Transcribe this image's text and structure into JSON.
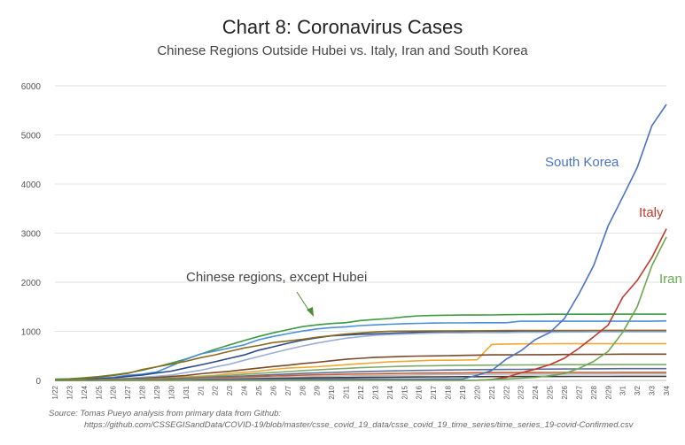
{
  "title": "Chart 8: Coronavirus Cases",
  "subtitle": "Chinese Regions Outside Hubei vs. Italy, Iran and South Korea",
  "source_line_1": "Source: Tomas Pueyo analysis from primary data from Github:",
  "source_line_2": "https://github.com/CSSEGISandData/COVID-19/blob/master/csse_covid_19_data/csse_covid_19_time_series/time_series_19-covid-Confirmed.csv",
  "annotation": "Chinese regions, except Hubei",
  "colors": {
    "south_korea": "#4a72c4",
    "italy": "#c0392b",
    "iran": "#6aa84f",
    "grid": "#e2e2e2",
    "axis_text": "#555555",
    "annotation_text": "#444444",
    "arrow": "#4f8a3a"
  },
  "chart_data": {
    "type": "line",
    "ylim": [
      0,
      6000
    ],
    "yticks": [
      0,
      1000,
      2000,
      3000,
      4000,
      5000,
      6000
    ],
    "grid": true,
    "legend": "direct labels at line ends",
    "x": [
      "1/22",
      "1/23",
      "1/24",
      "1/25",
      "1/26",
      "1/27",
      "1/28",
      "1/29",
      "1/30",
      "1/31",
      "2/1",
      "2/2",
      "2/3",
      "2/4",
      "2/5",
      "2/6",
      "2/7",
      "2/8",
      "2/9",
      "2/10",
      "2/11",
      "2/12",
      "2/13",
      "2/14",
      "2/15",
      "2/16",
      "2/17",
      "2/18",
      "2/19",
      "2/20",
      "2/21",
      "2/22",
      "2/23",
      "2/24",
      "2/25",
      "2/26",
      "2/27",
      "2/28",
      "2/29",
      "3/1",
      "3/2",
      "3/3",
      "3/4"
    ],
    "labeled_series": [
      {
        "name": "South Korea",
        "color": "#4a72c4",
        "values": [
          1,
          1,
          2,
          2,
          3,
          4,
          4,
          4,
          4,
          11,
          12,
          15,
          15,
          16,
          19,
          23,
          24,
          24,
          25,
          27,
          28,
          28,
          28,
          28,
          28,
          29,
          30,
          31,
          31,
          104,
          204,
          433,
          602,
          833,
          977,
          1261,
          1766,
          2337,
          3150,
          3736,
          4335,
          5186,
          5621
        ]
      },
      {
        "name": "Italy",
        "color": "#c0392b",
        "values": [
          0,
          0,
          0,
          0,
          0,
          0,
          0,
          0,
          0,
          2,
          2,
          2,
          2,
          2,
          2,
          2,
          3,
          3,
          3,
          3,
          3,
          3,
          3,
          3,
          3,
          3,
          3,
          3,
          3,
          3,
          20,
          62,
          155,
          229,
          322,
          453,
          655,
          888,
          1128,
          1694,
          2036,
          2502,
          3089
        ]
      },
      {
        "name": "Iran",
        "color": "#6aa84f",
        "values": [
          0,
          0,
          0,
          0,
          0,
          0,
          0,
          0,
          0,
          0,
          0,
          0,
          0,
          0,
          0,
          0,
          0,
          0,
          0,
          0,
          0,
          0,
          0,
          0,
          0,
          0,
          0,
          0,
          2,
          5,
          18,
          28,
          43,
          61,
          95,
          139,
          245,
          388,
          593,
          978,
          1501,
          2336,
          2922
        ]
      }
    ],
    "china_regions": [
      {
        "color": "#3c9a42",
        "values": [
          26,
          32,
          53,
          78,
          111,
          151,
          207,
          277,
          354,
          436,
          535,
          632,
          725,
          813,
          895,
          970,
          1034,
          1095,
          1131,
          1159,
          1177,
          1219,
          1241,
          1261,
          1294,
          1316,
          1322,
          1328,
          1331,
          1332,
          1333,
          1339,
          1342,
          1345,
          1347,
          1347,
          1347,
          1348,
          1349,
          1349,
          1350,
          1350,
          1350
        ]
      },
      {
        "color": "#4a90d9",
        "values": [
          5,
          10,
          27,
          43,
          62,
          104,
          128,
          173,
          296,
          428,
          538,
          599,
          661,
          724,
          829,
          895,
          954,
          1006,
          1048,
          1075,
          1092,
          1117,
          1131,
          1145,
          1155,
          1162,
          1167,
          1171,
          1172,
          1174,
          1174,
          1175,
          1205,
          1205,
          1205,
          1205,
          1205,
          1205,
          1205,
          1205,
          1205,
          1206,
          1213
        ]
      },
      {
        "color": "#2b4a8a",
        "values": [
          1,
          5,
          18,
          33,
          48,
          83,
          110,
          152,
          189,
          255,
          316,
          380,
          450,
          519,
          617,
          684,
          756,
          819,
          869,
          908,
          924,
          940,
          948,
          958,
          969,
          981,
          988,
          994,
          997,
          998,
          999,
          999,
          1000,
          1000,
          1000,
          1000,
          1000,
          1000,
          1001,
          1001,
          1001,
          1001,
          1001
        ]
      },
      {
        "color": "#8b6a1e",
        "values": [
          9,
          24,
          43,
          69,
          100,
          143,
          221,
          277,
          332,
          389,
          463,
          521,
          593,
          661,
          711,
          772,
          803,
          838,
          879,
          912,
          946,
          968,
          988,
          1001,
          1004,
          1006,
          1007,
          1008,
          1010,
          1011,
          1013,
          1016,
          1016,
          1016,
          1016,
          1017,
          1017,
          1018,
          1019,
          1019,
          1019,
          1019,
          1019
        ]
      },
      {
        "color": "#9aaed6",
        "values": [
          1,
          3,
          12,
          15,
          29,
          45,
          64,
          85,
          110,
          160,
          205,
          273,
          330,
          410,
          486,
          560,
          633,
          700,
          761,
          812,
          860,
          890,
          920,
          935,
          945,
          957,
          965,
          970,
          970,
          975,
          975,
          975,
          980,
          980,
          980,
          985,
          985,
          990,
          990,
          990,
          990,
          990,
          990
        ]
      },
      {
        "color": "#f0a830",
        "values": [
          0,
          2,
          5,
          10,
          17,
          25,
          32,
          41,
          52,
          72,
          86,
          104,
          140,
          164,
          188,
          225,
          250,
          265,
          280,
          300,
          320,
          340,
          360,
          380,
          390,
          400,
          410,
          410,
          415,
          420,
          734,
          740,
          745,
          745,
          748,
          750,
          750,
          750,
          750,
          750,
          750,
          750,
          750
        ]
      },
      {
        "color": "#7a4a2a",
        "values": [
          2,
          5,
          10,
          14,
          21,
          31,
          45,
          60,
          80,
          100,
          135,
          160,
          186,
          220,
          250,
          282,
          310,
          345,
          370,
          400,
          430,
          450,
          470,
          480,
          490,
          495,
          500,
          505,
          510,
          515,
          520,
          520,
          522,
          525,
          525,
          528,
          530,
          530,
          532,
          535,
          535,
          535,
          535
        ]
      },
      {
        "color": "#7fa86a",
        "values": [
          1,
          3,
          5,
          8,
          12,
          18,
          26,
          34,
          46,
          60,
          74,
          88,
          105,
          125,
          145,
          160,
          180,
          200,
          215,
          230,
          245,
          260,
          270,
          280,
          290,
          295,
          300,
          305,
          308,
          310,
          312,
          314,
          316,
          318,
          318,
          320,
          320,
          320,
          322,
          322,
          322,
          322,
          322
        ]
      },
      {
        "color": "#5b6f96",
        "values": [
          1,
          2,
          4,
          6,
          9,
          13,
          18,
          24,
          32,
          42,
          54,
          66,
          78,
          90,
          104,
          118,
          130,
          142,
          152,
          162,
          170,
          178,
          186,
          192,
          198,
          204,
          208,
          212,
          216,
          220,
          222,
          224,
          226,
          228,
          230,
          232,
          234,
          236,
          238,
          240,
          240,
          240,
          240
        ]
      },
      {
        "color": "#c25a3a",
        "values": [
          1,
          2,
          3,
          5,
          8,
          11,
          15,
          20,
          26,
          33,
          41,
          50,
          60,
          70,
          80,
          90,
          98,
          106,
          114,
          120,
          126,
          132,
          136,
          140,
          144,
          148,
          150,
          152,
          154,
          156,
          158,
          160,
          160,
          160,
          162,
          162,
          162,
          162,
          162,
          164,
          164,
          164,
          164
        ]
      },
      {
        "color": "#b8b8b8",
        "values": [
          0,
          1,
          2,
          3,
          5,
          7,
          10,
          13,
          17,
          22,
          28,
          34,
          40,
          47,
          54,
          60,
          66,
          72,
          78,
          84,
          90,
          95,
          100,
          104,
          108,
          112,
          115,
          118,
          120,
          122,
          124,
          126,
          128,
          130,
          130,
          130,
          132,
          132,
          132,
          134,
          134,
          134,
          134
        ]
      },
      {
        "color": "#3f3f3f",
        "values": [
          0,
          1,
          1,
          2,
          3,
          5,
          7,
          9,
          12,
          15,
          19,
          23,
          27,
          31,
          36,
          40,
          44,
          48,
          52,
          55,
          58,
          61,
          64,
          66,
          68,
          70,
          72,
          74,
          75,
          76,
          77,
          78,
          79,
          80,
          80,
          80,
          81,
          81,
          81,
          82,
          82,
          82,
          82
        ]
      }
    ]
  }
}
